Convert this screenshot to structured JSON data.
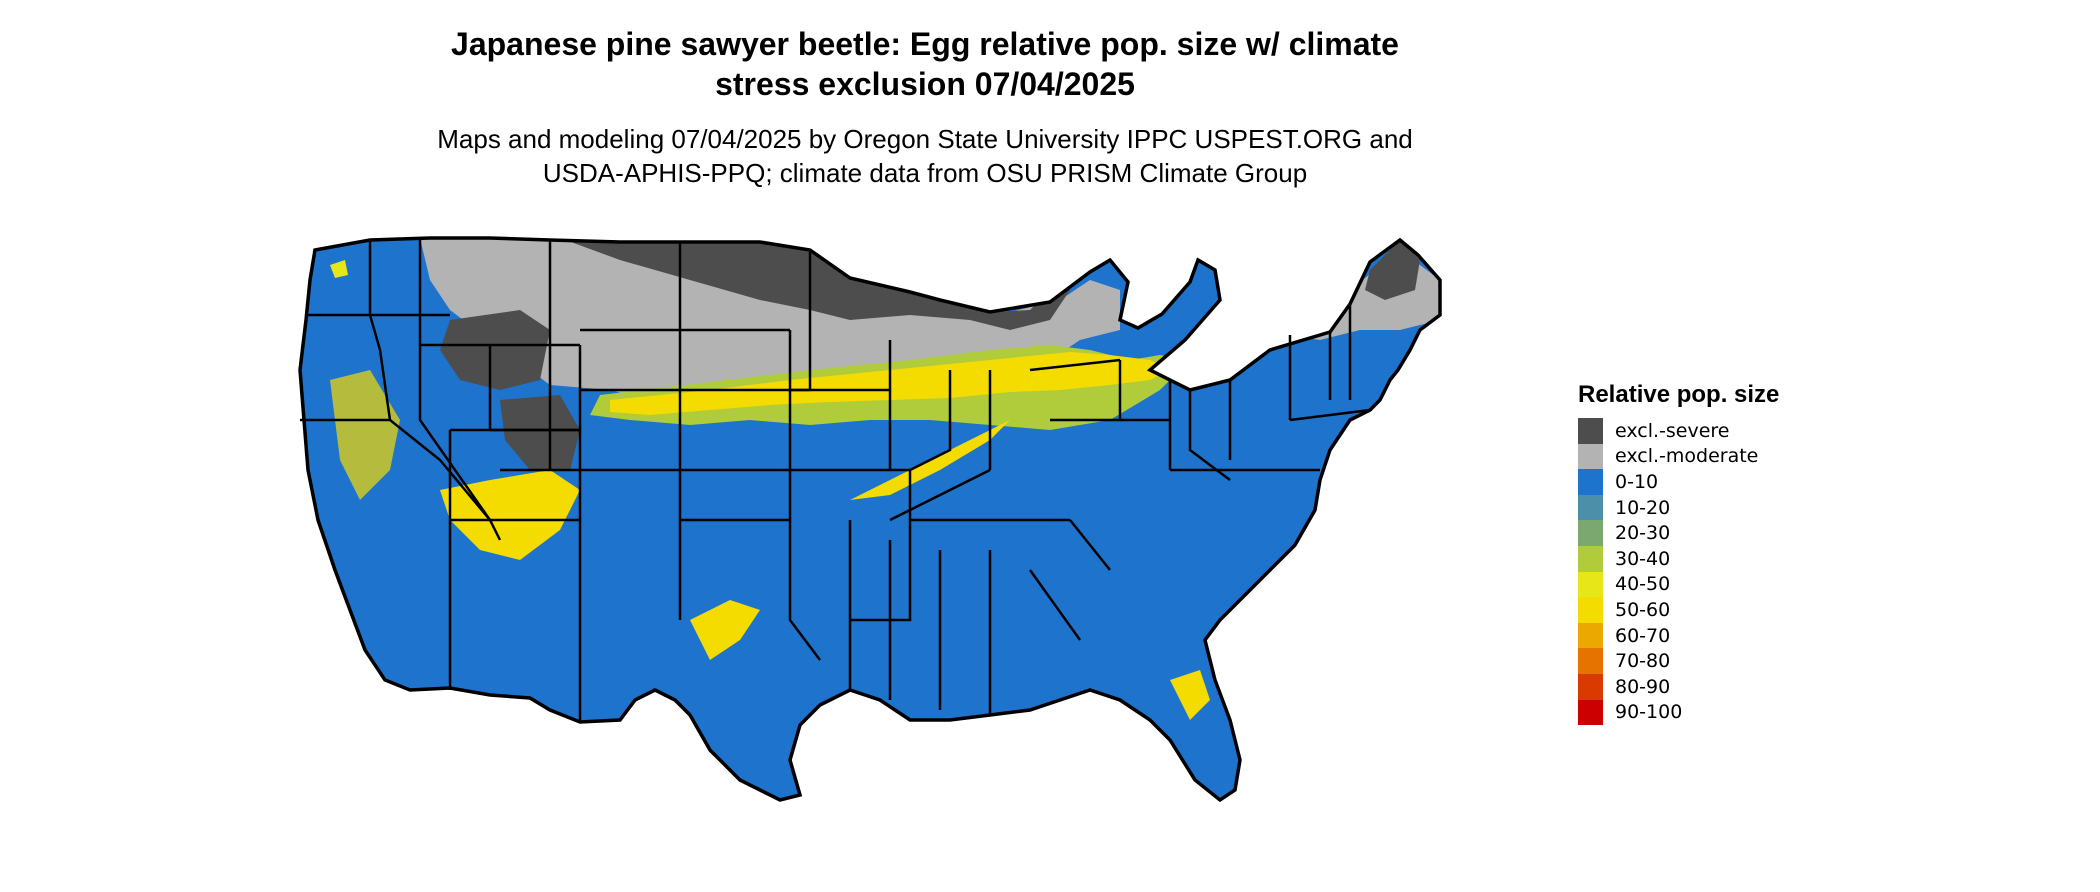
{
  "title": {
    "line1": "Japanese pine sawyer beetle: Egg relative pop. size w/ climate",
    "line2": "stress exclusion 07/04/2025"
  },
  "subtitle": {
    "line1": "Maps and modeling 07/04/2025 by Oregon State University IPPC USPEST.ORG and",
    "line2": "USDA-APHIS-PPQ; climate data from OSU PRISM Climate Group"
  },
  "legend": {
    "title": "Relative pop. size",
    "items": [
      {
        "label": "excl.-severe",
        "color": "#4d4d4d"
      },
      {
        "label": "excl.-moderate",
        "color": "#b3b3b3"
      },
      {
        "label": "0-10",
        "color": "#1e73cc"
      },
      {
        "label": "10-20",
        "color": "#4b8fa8"
      },
      {
        "label": "20-30",
        "color": "#7aa86f"
      },
      {
        "label": "30-40",
        "color": "#b0cc3a"
      },
      {
        "label": "40-50",
        "color": "#e6e619"
      },
      {
        "label": "50-60",
        "color": "#f5dc00"
      },
      {
        "label": "60-70",
        "color": "#eba800"
      },
      {
        "label": "70-80",
        "color": "#e67300"
      },
      {
        "label": "80-90",
        "color": "#d93a00"
      },
      {
        "label": "90-100",
        "color": "#cc0000"
      }
    ]
  },
  "map": {
    "base_color": "#1e73cc",
    "border_color": "#000000"
  }
}
